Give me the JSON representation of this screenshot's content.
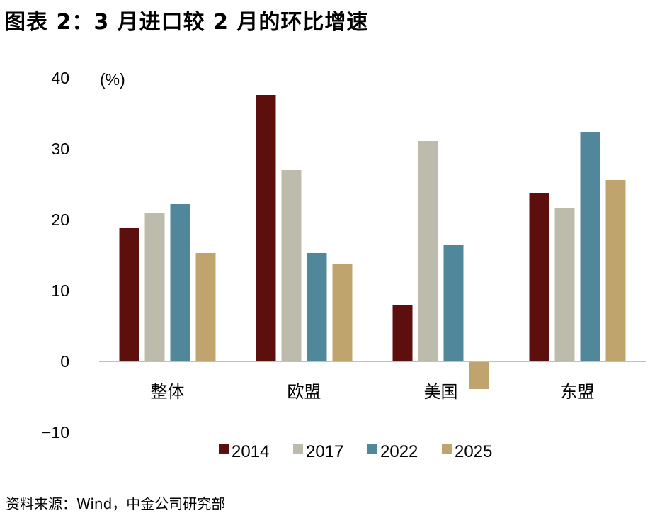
{
  "title": "图表 2：3 月进口较 2 月的环比增速",
  "source": "资料来源：Wind，中金公司研究部",
  "chart_data": {
    "type": "bar",
    "unit_label": "(%)",
    "categories": [
      "整体",
      "欧盟",
      "美国",
      "东盟"
    ],
    "series": [
      {
        "name": "2014",
        "color": "#5c0f0c",
        "values": [
          18.8,
          37.6,
          7.9,
          23.8
        ]
      },
      {
        "name": "2017",
        "color": "#bdbcac",
        "values": [
          20.9,
          27.0,
          31.1,
          21.6
        ]
      },
      {
        "name": "2022",
        "color": "#51879a",
        "values": [
          22.2,
          15.3,
          16.4,
          32.4
        ]
      },
      {
        "name": "2025",
        "color": "#bfa46e",
        "values": [
          15.3,
          13.7,
          -3.9,
          25.6
        ]
      }
    ],
    "ylim": [
      -10,
      40
    ],
    "yticks": [
      "−10",
      "0",
      "10",
      "20",
      "30",
      "40"
    ],
    "ytick_values": [
      -10,
      0,
      10,
      20,
      30,
      40
    ],
    "legend_position": "bottom",
    "grid": false
  }
}
